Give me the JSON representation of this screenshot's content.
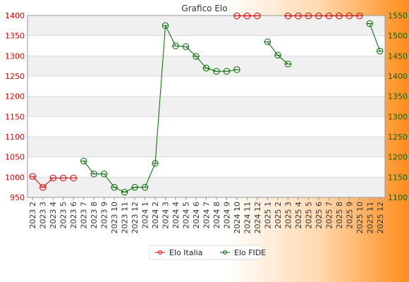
{
  "chart_data": {
    "type": "line",
    "title": "Grafico Elo",
    "categories": [
      "2023 2",
      "2023 3",
      "2023 4",
      "2023 5",
      "2023 6",
      "2023 7",
      "2023 8",
      "2023 9",
      "2023 10",
      "2023 11",
      "2023 12",
      "2024 1",
      "2024 2",
      "2024 3",
      "2024 4",
      "2024 5",
      "2024 6",
      "2024 7",
      "2024 8",
      "2024 9",
      "2024 10",
      "2024 11",
      "2024 12",
      "2025 1",
      "2025 2",
      "2025 3",
      "2025 4",
      "2025 5",
      "2025 6",
      "2025 7",
      "2025 8",
      "2025 9",
      "2025 10",
      "2025 11",
      "2025 12"
    ],
    "y_left": {
      "min": 950,
      "max": 1400,
      "ticks": [
        950,
        1000,
        1050,
        1100,
        1150,
        1200,
        1250,
        1300,
        1350,
        1400
      ],
      "color": "#dd0000"
    },
    "y_right": {
      "min": 1100,
      "max": 1550,
      "ticks": [
        1100,
        1150,
        1200,
        1250,
        1300,
        1350,
        1400,
        1450,
        1500,
        1550
      ],
      "color": "#006600"
    },
    "grid": true,
    "legend_position": "bottom",
    "series": [
      {
        "name": "Elo Italia",
        "axis": "left",
        "color": "#dd0000",
        "values": [
          1002,
          975,
          998,
          998,
          998,
          null,
          null,
          null,
          null,
          null,
          null,
          null,
          null,
          null,
          null,
          null,
          null,
          null,
          null,
          null,
          1399,
          1399,
          1399,
          null,
          null,
          1399,
          1399,
          1399,
          1399,
          1399,
          1399,
          1399,
          1399,
          null,
          null
        ]
      },
      {
        "name": "Elo FIDE",
        "axis": "right",
        "color": "#006600",
        "values": [
          null,
          null,
          null,
          null,
          null,
          1190,
          1158,
          1158,
          1125,
          1113,
          1125,
          1125,
          1184,
          1525,
          1475,
          1473,
          1449,
          1420,
          1412,
          1412,
          1416,
          null,
          null,
          1485,
          1452,
          1430,
          null,
          null,
          null,
          null,
          null,
          null,
          null,
          1530,
          1462
        ]
      }
    ]
  }
}
